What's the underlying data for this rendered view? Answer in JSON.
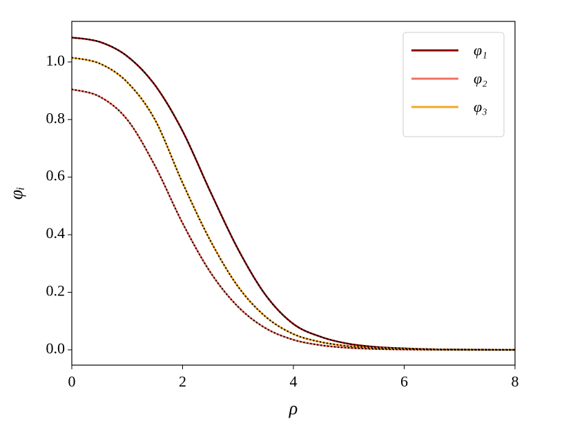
{
  "chart_data": {
    "type": "line",
    "x_label": "ρ",
    "y_label": "φᵢ",
    "x": [
      0,
      0.5,
      1,
      1.5,
      2,
      2.5,
      3,
      3.5,
      4,
      4.5,
      5,
      5.5,
      6,
      6.5,
      7,
      7.5,
      8
    ],
    "series": [
      {
        "name": "φ₁",
        "color": "#8b0000",
        "values": [
          1.085,
          1.07,
          1.02,
          0.92,
          0.76,
          0.55,
          0.35,
          0.19,
          0.09,
          0.045,
          0.021,
          0.01,
          0.005,
          0.002,
          0.001,
          0.0005,
          0.0002
        ]
      },
      {
        "name": "φ₂",
        "color": "#f07060",
        "values": [
          0.905,
          0.88,
          0.8,
          0.64,
          0.44,
          0.27,
          0.15,
          0.075,
          0.035,
          0.016,
          0.007,
          0.003,
          0.0013,
          0.0006,
          0.0003,
          0.0001,
          5e-05
        ]
      },
      {
        "name": "φ₃",
        "color": "#f5a623",
        "values": [
          1.015,
          0.995,
          0.93,
          0.8,
          0.58,
          0.38,
          0.22,
          0.115,
          0.055,
          0.027,
          0.013,
          0.006,
          0.003,
          0.0013,
          0.0006,
          0.0003,
          0.0001
        ]
      }
    ],
    "overlay": {
      "color": "#000000",
      "dash": "2 3"
    },
    "xlim": [
      0,
      8
    ],
    "xticks": [
      0,
      2,
      4,
      6,
      8
    ],
    "ylim": [
      -0.053,
      1.141
    ],
    "yticks": [
      {
        "value": 0,
        "label": "0.0"
      },
      {
        "value": 0.2,
        "label": "0.2"
      },
      {
        "value": 0.4,
        "label": "0.4"
      },
      {
        "value": 0.6,
        "label": "0.6"
      },
      {
        "value": 0.8,
        "label": "0.8"
      },
      {
        "value": 1.0,
        "label": "1.0"
      }
    ],
    "grid": false,
    "legend": "upper right"
  }
}
